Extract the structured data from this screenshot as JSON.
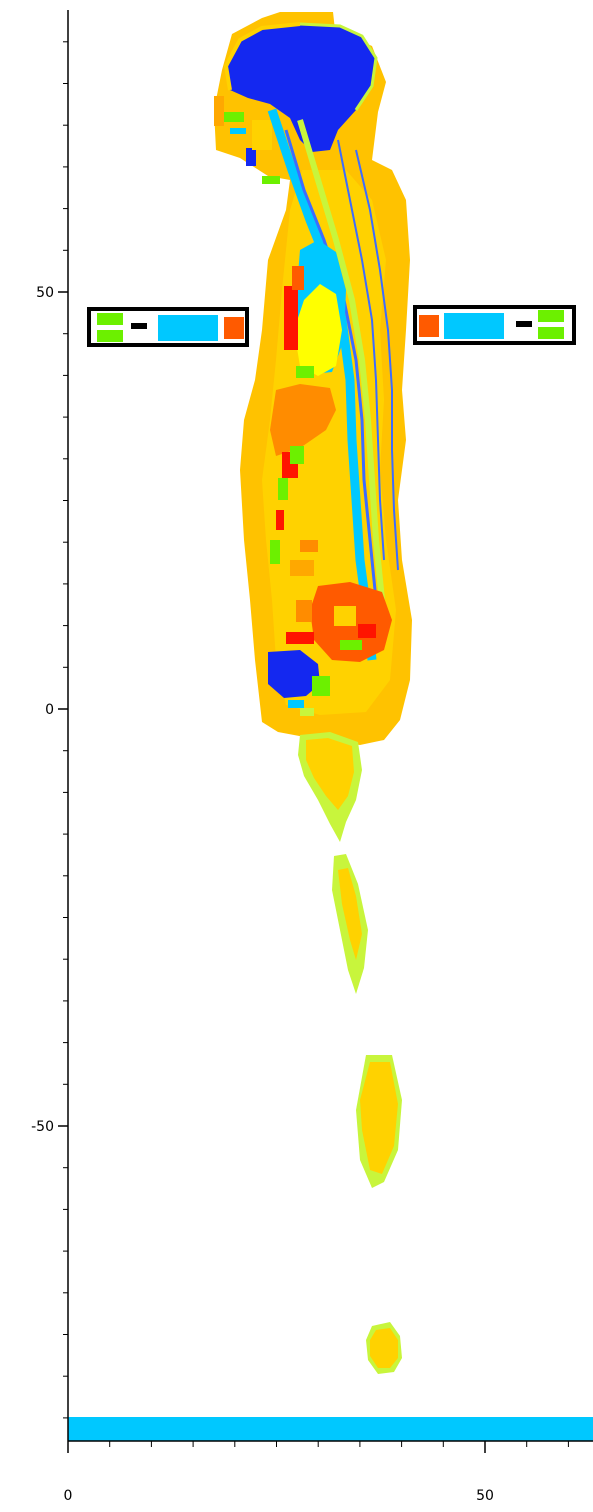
{
  "axes": {
    "y_ticks": [
      {
        "value": 50,
        "label": "50"
      },
      {
        "value": 0,
        "label": "0"
      },
      {
        "value": -50,
        "label": "-50"
      }
    ],
    "x_ticks": [
      {
        "value": 0,
        "label": "0"
      },
      {
        "value": 50,
        "label": "50"
      }
    ],
    "y_minor_step": 5,
    "x_minor_step": 5
  },
  "colors": {
    "background": "#ffffff",
    "axis": "#000000",
    "outer_tissue": "#ffd200",
    "skin": "#ffc200",
    "fat": "#ffa800",
    "muscle_light": "#c8f53c",
    "green": "#6cf000",
    "brain_blue": "#1428f0",
    "cyan": "#00c8ff",
    "mid_blue": "#3c6cff",
    "red": "#ff1400",
    "orange_red": "#ff5a00",
    "orange": "#ff8c00",
    "yellow": "#ffff00",
    "black": "#000000"
  }
}
